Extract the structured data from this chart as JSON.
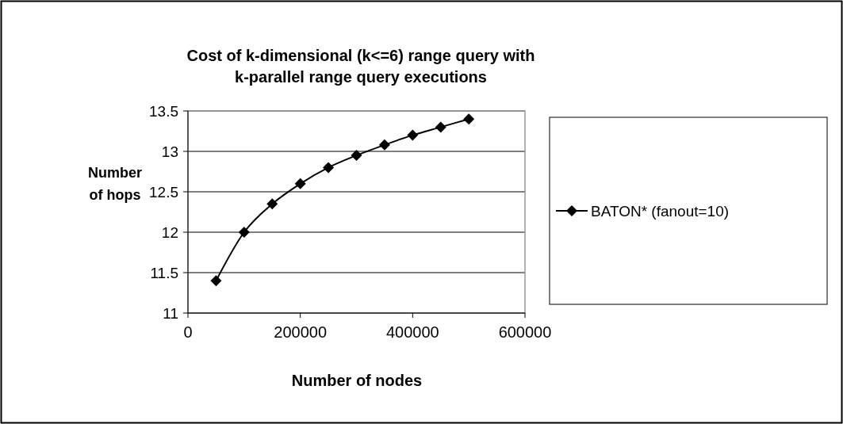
{
  "chart_data": {
    "type": "line",
    "title": "Cost of k-dimensional  (k<=6) range query with\nk-parallel  range query executions",
    "xlabel": "Number of nodes",
    "ylabel": "Number\nof hops",
    "x": [
      50000,
      100000,
      150000,
      200000,
      250000,
      300000,
      350000,
      400000,
      450000,
      500000
    ],
    "series": [
      {
        "name": "BATON* (fanout=10)",
        "color": "#000000",
        "values": [
          11.4,
          12.0,
          12.35,
          12.6,
          12.8,
          12.95,
          13.08,
          13.2,
          13.3,
          13.4
        ]
      }
    ],
    "xlim": [
      0,
      600000
    ],
    "xticks": [
      0,
      200000,
      400000,
      600000
    ],
    "ylim": [
      11,
      13.5
    ],
    "yticks": [
      11,
      11.5,
      12,
      12.5,
      13,
      13.5
    ],
    "grid": "y",
    "legend": "right",
    "marker": "diamond",
    "line_style": "solid"
  }
}
